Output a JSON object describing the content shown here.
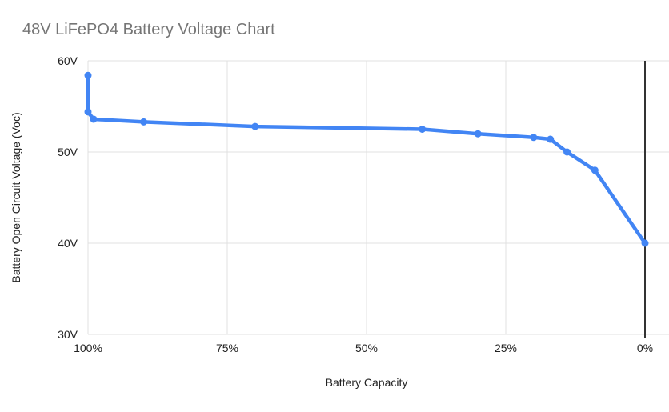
{
  "chart": {
    "title": "48V LiFePO4 Battery Voltage Chart",
    "x_axis_title": "Battery Capacity",
    "y_axis_title": "Battery Open Circuit Voltage (Voc)"
  },
  "chart_data": {
    "type": "line",
    "title": "48V LiFePO4 Battery Voltage Chart",
    "xlabel": "Battery Capacity",
    "ylabel": "Battery Open Circuit Voltage (Voc)",
    "x_reversed": true,
    "xlim": [
      100,
      0
    ],
    "ylim": [
      30,
      60
    ],
    "grid": true,
    "legend_position": "none",
    "x_ticks": [
      {
        "value": 100,
        "label": "100%"
      },
      {
        "value": 75,
        "label": "75%"
      },
      {
        "value": 50,
        "label": "50%"
      },
      {
        "value": 25,
        "label": "25%"
      },
      {
        "value": 0,
        "label": "0%"
      }
    ],
    "y_ticks": [
      {
        "value": 60,
        "label": "60V"
      },
      {
        "value": 50,
        "label": "50V"
      },
      {
        "value": 40,
        "label": "40V"
      },
      {
        "value": 30,
        "label": "30V"
      }
    ],
    "series": [
      {
        "name": "Battery Open Circuit Voltage (Voc)",
        "color": "#4285F4",
        "points": [
          {
            "capacity_pct": 100,
            "voltage": 58.4
          },
          {
            "capacity_pct": 100,
            "voltage": 54.4
          },
          {
            "capacity_pct": 99,
            "voltage": 53.6
          },
          {
            "capacity_pct": 90,
            "voltage": 53.3
          },
          {
            "capacity_pct": 70,
            "voltage": 52.8
          },
          {
            "capacity_pct": 40,
            "voltage": 52.5
          },
          {
            "capacity_pct": 30,
            "voltage": 52.0
          },
          {
            "capacity_pct": 20,
            "voltage": 51.6
          },
          {
            "capacity_pct": 17,
            "voltage": 51.4
          },
          {
            "capacity_pct": 14,
            "voltage": 50.0
          },
          {
            "capacity_pct": 9,
            "voltage": 48.0
          },
          {
            "capacity_pct": 0,
            "voltage": 40.0
          }
        ]
      }
    ],
    "colors": {
      "line": "#4285F4",
      "title_text": "#757575",
      "axis_text": "#222222",
      "gridline": "#e0e0e0",
      "zero_axis": "#333333",
      "background": "#ffffff"
    }
  }
}
